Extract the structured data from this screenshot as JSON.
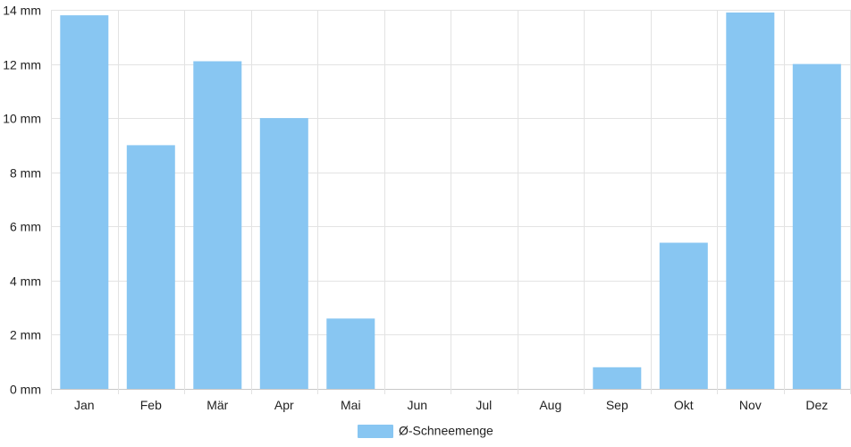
{
  "chart_data": {
    "type": "bar",
    "categories": [
      "Jan",
      "Feb",
      "Mär",
      "Apr",
      "Mai",
      "Jun",
      "Jul",
      "Aug",
      "Sep",
      "Okt",
      "Nov",
      "Dez"
    ],
    "series": [
      {
        "name": "Ø-Schneemenge",
        "values": [
          13.8,
          9.0,
          12.1,
          10.0,
          2.6,
          0,
          0,
          0,
          0.8,
          5.4,
          13.9,
          12.0
        ],
        "color": "#88c6f2"
      }
    ],
    "ylim": [
      0,
      14
    ],
    "yticks": [
      0,
      2,
      4,
      6,
      8,
      10,
      12,
      14
    ],
    "y_tick_labels": [
      "0 mm",
      "2 mm",
      "4 mm",
      "6 mm",
      "8 mm",
      "10 mm",
      "12 mm",
      "14 mm"
    ],
    "grid": true,
    "legend": "bottom-center"
  }
}
